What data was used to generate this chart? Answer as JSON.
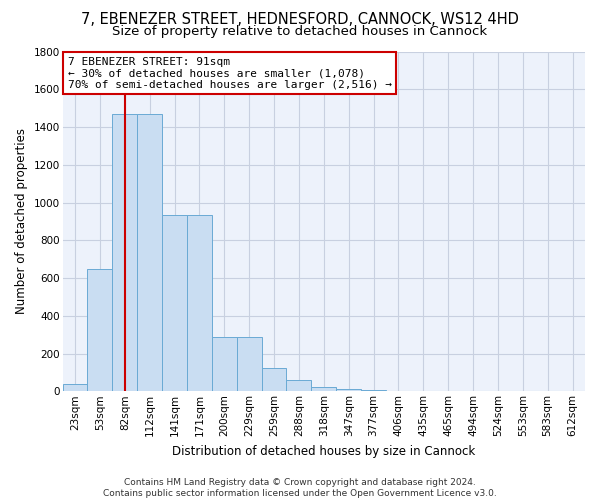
{
  "title1": "7, EBENEZER STREET, HEDNESFORD, CANNOCK, WS12 4HD",
  "title2": "Size of property relative to detached houses in Cannock",
  "xlabel": "Distribution of detached houses by size in Cannock",
  "ylabel": "Number of detached properties",
  "categories": [
    "23sqm",
    "53sqm",
    "82sqm",
    "112sqm",
    "141sqm",
    "171sqm",
    "200sqm",
    "229sqm",
    "259sqm",
    "288sqm",
    "318sqm",
    "347sqm",
    "377sqm",
    "406sqm",
    "435sqm",
    "465sqm",
    "494sqm",
    "524sqm",
    "553sqm",
    "583sqm",
    "612sqm"
  ],
  "values": [
    40,
    650,
    1470,
    1470,
    935,
    935,
    290,
    290,
    125,
    62,
    22,
    10,
    5,
    2,
    0,
    0,
    0,
    0,
    0,
    0,
    0
  ],
  "bar_color": "#c9ddf2",
  "bar_edge_color": "#6aaad4",
  "vline_x": 2,
  "vline_color": "#cc0000",
  "ylim": [
    0,
    1800
  ],
  "yticks": [
    0,
    200,
    400,
    600,
    800,
    1000,
    1200,
    1400,
    1600,
    1800
  ],
  "annotation_line1": "7 EBENEZER STREET: 91sqm",
  "annotation_line2": "← 30% of detached houses are smaller (1,078)",
  "annotation_line3": "70% of semi-detached houses are larger (2,516) →",
  "footer_line1": "Contains HM Land Registry data © Crown copyright and database right 2024.",
  "footer_line2": "Contains public sector information licensed under the Open Government Licence v3.0.",
  "background_color": "#edf2fb",
  "grid_color": "#c8d0e0",
  "title1_fontsize": 10.5,
  "title2_fontsize": 9.5,
  "xlabel_fontsize": 8.5,
  "ylabel_fontsize": 8.5,
  "tick_fontsize": 7.5,
  "annotation_fontsize": 8.0,
  "footer_fontsize": 6.5
}
